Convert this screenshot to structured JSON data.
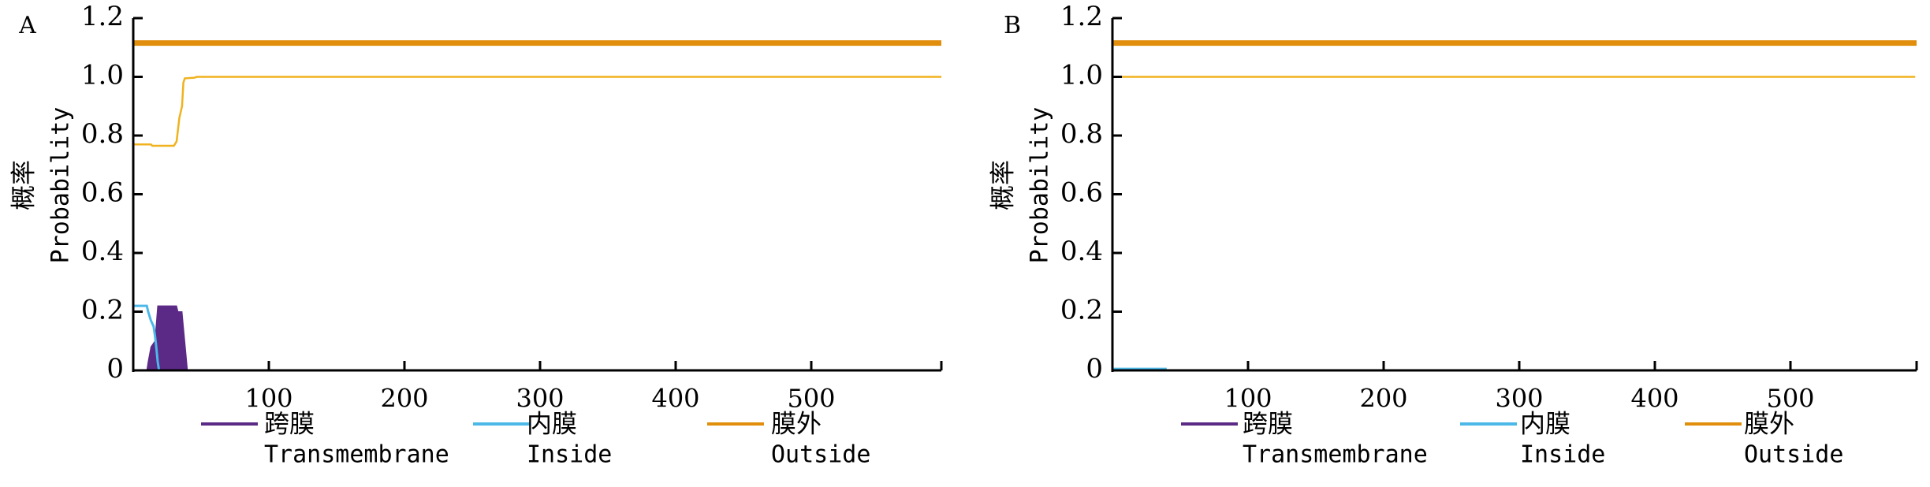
{
  "chart_data": [
    {
      "type": "line",
      "panel_label": "A",
      "ylabel_cn": "概率",
      "ylabel": "Probability",
      "xlabel": "",
      "xlim": [
        0,
        596
      ],
      "ylim": [
        0,
        1.2
      ],
      "yticks": [
        "0",
        "0.2",
        "0.4",
        "0.6",
        "0.8",
        "1.0",
        "1.2"
      ],
      "ytick_values": [
        0,
        0.2,
        0.4,
        0.6,
        0.8,
        1.0,
        1.2
      ],
      "xticks": [
        "100",
        "200",
        "300",
        "400",
        "500"
      ],
      "xtick_values": [
        100,
        200,
        300,
        400,
        500
      ],
      "legend_position": "bottom",
      "reference_line": {
        "name": "Outside marker",
        "y": 1.115,
        "color": "#e08e0b"
      },
      "series": [
        {
          "name": "Transmembrane",
          "name_cn": "跨膜",
          "color": "#5b2a86",
          "style": "area",
          "points": [
            [
              10,
              0
            ],
            [
              11,
              0.03
            ],
            [
              13,
              0.08
            ],
            [
              16,
              0.1
            ],
            [
              18,
              0.22
            ],
            [
              32,
              0.22
            ],
            [
              33,
              0.2
            ],
            [
              36,
              0.2
            ],
            [
              37,
              0.15
            ],
            [
              39,
              0.05
            ],
            [
              40,
              0
            ]
          ]
        },
        {
          "name": "Inside",
          "name_cn": "内膜",
          "color": "#4cb8e8",
          "style": "line",
          "points": [
            [
              0,
              0.22
            ],
            [
              10,
              0.22
            ],
            [
              11,
              0.2
            ],
            [
              13,
              0.17
            ],
            [
              15,
              0.15
            ],
            [
              16,
              0.12
            ],
            [
              17,
              0.08
            ],
            [
              18,
              0.03
            ],
            [
              19,
              0
            ],
            [
              596,
              0
            ]
          ]
        },
        {
          "name": "Outside",
          "name_cn": "膜外",
          "color": "#f0b21e",
          "legend_color": "#e08e0b",
          "style": "line",
          "points": [
            [
              0,
              0.77
            ],
            [
              13,
              0.77
            ],
            [
              14,
              0.765
            ],
            [
              30,
              0.765
            ],
            [
              32,
              0.78
            ],
            [
              34,
              0.86
            ],
            [
              36,
              0.9
            ],
            [
              37,
              0.98
            ],
            [
              38,
              0.995
            ],
            [
              45,
              0.997
            ],
            [
              47,
              1.0
            ],
            [
              596,
              1.0
            ]
          ]
        }
      ]
    },
    {
      "type": "line",
      "panel_label": "B",
      "ylabel_cn": "概率",
      "ylabel": "Probability",
      "xlabel": "",
      "xlim": [
        0,
        592
      ],
      "ylim": [
        0,
        1.2
      ],
      "yticks": [
        "0",
        "0.2",
        "0.4",
        "0.6",
        "0.8",
        "1.0",
        "1.2"
      ],
      "ytick_values": [
        0,
        0.2,
        0.4,
        0.6,
        0.8,
        1.0,
        1.2
      ],
      "xticks": [
        "100",
        "200",
        "300",
        "400",
        "500"
      ],
      "xtick_values": [
        100,
        200,
        300,
        400,
        500
      ],
      "legend_position": "bottom",
      "reference_line": {
        "name": "Outside marker",
        "y": 1.115,
        "color": "#e08e0b"
      },
      "series": [
        {
          "name": "Transmembrane",
          "name_cn": "跨膜",
          "color": "#5b2a86",
          "style": "area",
          "points": []
        },
        {
          "name": "Inside",
          "name_cn": "内膜",
          "color": "#4cb8e8",
          "style": "line",
          "points": [
            [
              0,
              0.005
            ],
            [
              40,
              0.005
            ]
          ]
        },
        {
          "name": "Outside",
          "name_cn": "膜外",
          "color": "#f0b21e",
          "legend_color": "#e08e0b",
          "style": "line",
          "points": [
            [
              0,
              1.0
            ],
            [
              592,
              1.0
            ]
          ]
        }
      ]
    }
  ]
}
